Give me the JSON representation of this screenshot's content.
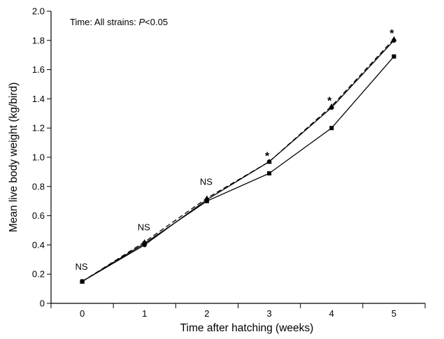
{
  "chart_data": {
    "type": "line",
    "title": "",
    "xlabel": "Time after hatching (weeks)",
    "ylabel": "Mean live body weight (kg/bird)",
    "x": [
      0,
      1,
      2,
      3,
      4,
      5
    ],
    "xlim": [
      -0.5,
      5.5
    ],
    "ylim": [
      0,
      2.0
    ],
    "yticks": [
      "0",
      "0.2",
      "0.4",
      "0.6",
      "0.8",
      "1.0",
      "1.2",
      "1.4",
      "1.6",
      "1.8",
      "2.0"
    ],
    "xticks": [
      "0",
      "1",
      "2",
      "3",
      "4",
      "5"
    ],
    "series": [
      {
        "values": [
          0.15,
          0.42,
          0.72,
          0.97,
          1.35,
          1.81
        ],
        "line_style": "dashed",
        "marker": "triangle"
      },
      {
        "values": [
          0.15,
          0.4,
          0.71,
          0.97,
          1.34,
          1.8
        ],
        "line_style": "solid",
        "marker": "circle"
      },
      {
        "values": [
          0.15,
          0.41,
          0.7,
          0.89,
          1.2,
          1.69
        ],
        "line_style": "solid",
        "marker": "square"
      }
    ],
    "annotation_text": {
      "time_prefix": "Time: All strains: ",
      "p_symbol": "P",
      "p_suffix": "<0.05"
    },
    "point_labels": [
      {
        "x": 0,
        "y": 0.23,
        "text": "NS"
      },
      {
        "x": 1,
        "y": 0.5,
        "text": "NS"
      },
      {
        "x": 2,
        "y": 0.81,
        "text": "NS"
      },
      {
        "x": 3,
        "y": 1.03,
        "text": "*"
      },
      {
        "x": 4,
        "y": 1.41,
        "text": "*"
      },
      {
        "x": 5,
        "y": 1.87,
        "text": "*"
      }
    ],
    "grid": false,
    "legend": "none",
    "colors": {
      "line": "#000000",
      "axis": "#000000"
    }
  }
}
